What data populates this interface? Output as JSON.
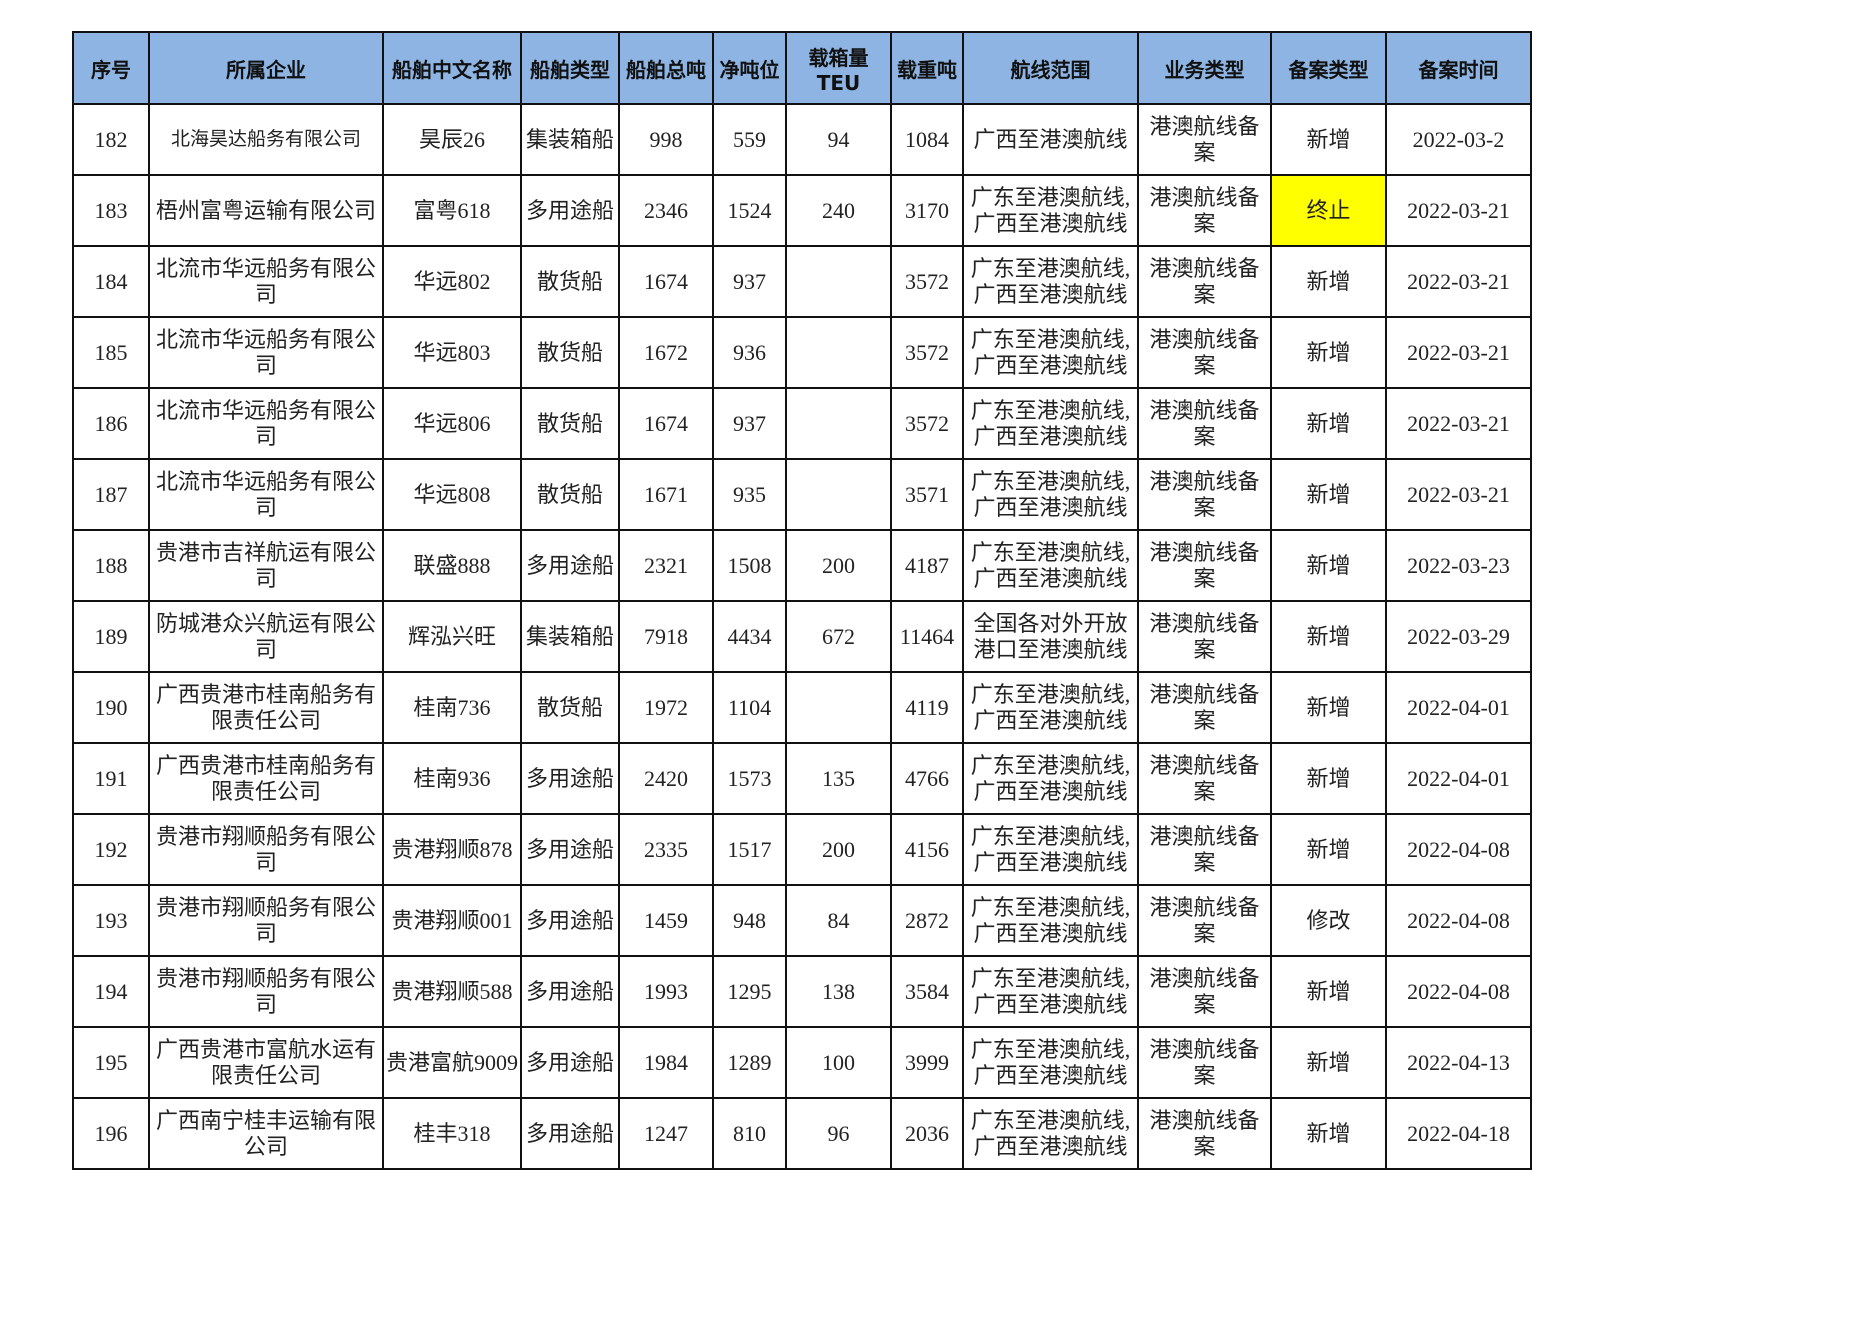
{
  "table": {
    "headers": [
      "序号",
      "所属企业",
      "船舶中文名称",
      "船舶类型",
      "船舶总吨",
      "净吨位",
      "载箱量TEU",
      "载重吨",
      "航线范围",
      "业务类型",
      "备案类型",
      "备案时间"
    ],
    "rows": [
      [
        "182",
        "北海昊达船务有限公司",
        "昊辰26",
        "集装箱船",
        "998",
        "559",
        "94",
        "1084",
        "广西至港澳航线",
        "港澳航线备案",
        "新增",
        "2022-03-2"
      ],
      [
        "183",
        "梧州富粤运输有限公司",
        "富粤618",
        "多用途船",
        "2346",
        "1524",
        "240",
        "3170",
        "广东至港澳航线,广西至港澳航线",
        "港澳航线备案",
        "终止",
        "2022-03-21"
      ],
      [
        "184",
        "北流市华远船务有限公司",
        "华远802",
        "散货船",
        "1674",
        "937",
        "",
        "3572",
        "广东至港澳航线,广西至港澳航线",
        "港澳航线备案",
        "新增",
        "2022-03-21"
      ],
      [
        "185",
        "北流市华远船务有限公司",
        "华远803",
        "散货船",
        "1672",
        "936",
        "",
        "3572",
        "广东至港澳航线,广西至港澳航线",
        "港澳航线备案",
        "新增",
        "2022-03-21"
      ],
      [
        "186",
        "北流市华远船务有限公司",
        "华远806",
        "散货船",
        "1674",
        "937",
        "",
        "3572",
        "广东至港澳航线,广西至港澳航线",
        "港澳航线备案",
        "新增",
        "2022-03-21"
      ],
      [
        "187",
        "北流市华远船务有限公司",
        "华远808",
        "散货船",
        "1671",
        "935",
        "",
        "3571",
        "广东至港澳航线,广西至港澳航线",
        "港澳航线备案",
        "新增",
        "2022-03-21"
      ],
      [
        "188",
        "贵港市吉祥航运有限公司",
        "联盛888",
        "多用途船",
        "2321",
        "1508",
        "200",
        "4187",
        "广东至港澳航线,广西至港澳航线",
        "港澳航线备案",
        "新增",
        "2022-03-23"
      ],
      [
        "189",
        "防城港众兴航运有限公司",
        "辉泓兴旺",
        "集装箱船",
        "7918",
        "4434",
        "672",
        "11464",
        "全国各对外开放港口至港澳航线",
        "港澳航线备案",
        "新增",
        "2022-03-29"
      ],
      [
        "190",
        "广西贵港市桂南船务有限责任公司",
        "桂南736",
        "散货船",
        "1972",
        "1104",
        "",
        "4119",
        "广东至港澳航线,广西至港澳航线",
        "港澳航线备案",
        "新增",
        "2022-04-01"
      ],
      [
        "191",
        "广西贵港市桂南船务有限责任公司",
        "桂南936",
        "多用途船",
        "2420",
        "1573",
        "135",
        "4766",
        "广东至港澳航线,广西至港澳航线",
        "港澳航线备案",
        "新增",
        "2022-04-01"
      ],
      [
        "192",
        "贵港市翔顺船务有限公司",
        "贵港翔顺878",
        "多用途船",
        "2335",
        "1517",
        "200",
        "4156",
        "广东至港澳航线,广西至港澳航线",
        "港澳航线备案",
        "新增",
        "2022-04-08"
      ],
      [
        "193",
        "贵港市翔顺船务有限公司",
        "贵港翔顺001",
        "多用途船",
        "1459",
        "948",
        "84",
        "2872",
        "广东至港澳航线,广西至港澳航线",
        "港澳航线备案",
        "修改",
        "2022-04-08"
      ],
      [
        "194",
        "贵港市翔顺船务有限公司",
        "贵港翔顺588",
        "多用途船",
        "1993",
        "1295",
        "138",
        "3584",
        "广东至港澳航线,广西至港澳航线",
        "港澳航线备案",
        "新增",
        "2022-04-08"
      ],
      [
        "195",
        "广西贵港市富航水运有限责任公司",
        "贵港富航9009",
        "多用途船",
        "1984",
        "1289",
        "100",
        "3999",
        "广东至港澳航线,广西至港澳航线",
        "港澳航线备案",
        "新增",
        "2022-04-13"
      ],
      [
        "196",
        "广西南宁桂丰运输有限公司",
        "桂丰318",
        "多用途船",
        "1247",
        "810",
        "96",
        "2036",
        "广东至港澳航线,广西至港澳航线",
        "港澳航线备案",
        "新增",
        "2022-04-18"
      ]
    ],
    "highlight": {
      "row": 1,
      "col": 10,
      "color": "#ffff00"
    },
    "header_color": "#8db4e2"
  }
}
